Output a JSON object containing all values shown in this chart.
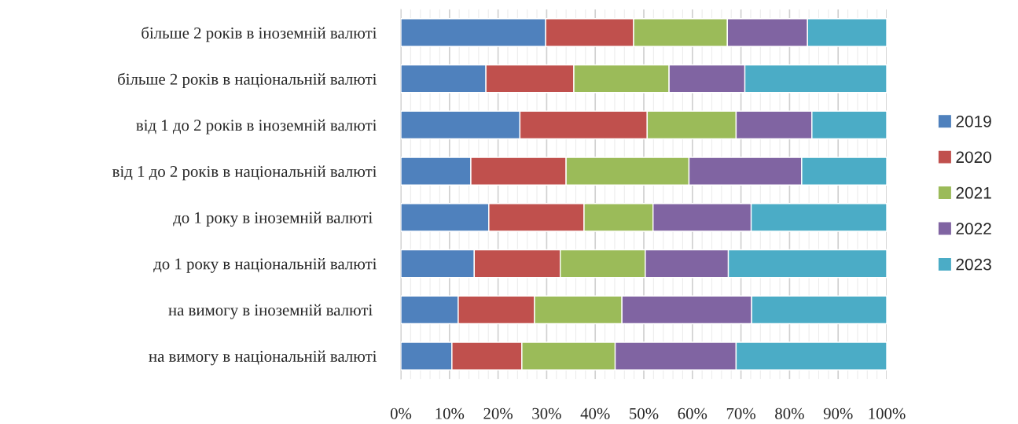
{
  "chart_data": {
    "type": "bar",
    "orientation": "horizontal",
    "stacked": true,
    "categories": [
      "більше 2 років в іноземній валюті",
      "більше 2 років в національній валюті",
      "від 1 до 2 років в іноземній валюті",
      "від 1 до 2 років в національній валюті",
      "до 1 року в іноземній валюті ",
      "до 1 року в національній валюті",
      "на вимогу в іноземній валюті ",
      "на вимогу в національній валюті"
    ],
    "series": [
      {
        "name": "2019",
        "color": "#4f81bd",
        "values": [
          29.8,
          17.5,
          24.5,
          14.4,
          18.1,
          15.1,
          11.8,
          10.5
        ]
      },
      {
        "name": "2020",
        "color": "#c0504d",
        "values": [
          18.1,
          18.1,
          26.2,
          19.6,
          19.6,
          17.7,
          15.7,
          14.4
        ]
      },
      {
        "name": "2021",
        "color": "#9bbb59",
        "values": [
          19.3,
          19.6,
          18.3,
          25.3,
          14.2,
          17.5,
          18.0,
          19.2
        ]
      },
      {
        "name": "2022",
        "color": "#8064a2",
        "values": [
          16.5,
          15.6,
          15.6,
          23.2,
          20.2,
          17.1,
          26.7,
          24.9
        ]
      },
      {
        "name": "2023",
        "color": "#4bacc6",
        "values": [
          16.3,
          29.2,
          15.4,
          17.5,
          27.9,
          32.6,
          27.8,
          31.0
        ]
      }
    ],
    "xlim": [
      0,
      100
    ],
    "xticks": [
      {
        "value": 0,
        "label": "0%"
      },
      {
        "value": 2,
        "label": null
      },
      {
        "value": 4,
        "label": null
      },
      {
        "value": 6,
        "label": null
      },
      {
        "value": 8,
        "label": null
      },
      {
        "value": 10,
        "label": "10%"
      },
      {
        "value": 12,
        "label": null
      },
      {
        "value": 14,
        "label": null
      },
      {
        "value": 16,
        "label": null
      },
      {
        "value": 18,
        "label": null
      },
      {
        "value": 20,
        "label": "20%"
      },
      {
        "value": 22,
        "label": null
      },
      {
        "value": 24,
        "label": null
      },
      {
        "value": 26,
        "label": null
      },
      {
        "value": 28,
        "label": null
      },
      {
        "value": 30,
        "label": "30%"
      },
      {
        "value": 32,
        "label": null
      },
      {
        "value": 34,
        "label": null
      },
      {
        "value": 36,
        "label": null
      },
      {
        "value": 38,
        "label": null
      },
      {
        "value": 40,
        "label": "40%"
      },
      {
        "value": 42,
        "label": null
      },
      {
        "value": 44,
        "label": null
      },
      {
        "value": 46,
        "label": null
      },
      {
        "value": 48,
        "label": null
      },
      {
        "value": 50,
        "label": "50%"
      },
      {
        "value": 52,
        "label": null
      },
      {
        "value": 54,
        "label": null
      },
      {
        "value": 56,
        "label": null
      },
      {
        "value": 58,
        "label": null
      },
      {
        "value": 60,
        "label": "60%"
      },
      {
        "value": 62,
        "label": null
      },
      {
        "value": 64,
        "label": null
      },
      {
        "value": 66,
        "label": null
      },
      {
        "value": 68,
        "label": null
      },
      {
        "value": 70,
        "label": "70%"
      },
      {
        "value": 72,
        "label": null
      },
      {
        "value": 74,
        "label": null
      },
      {
        "value": 76,
        "label": null
      },
      {
        "value": 78,
        "label": null
      },
      {
        "value": 80,
        "label": "80%"
      },
      {
        "value": 82,
        "label": null
      },
      {
        "value": 84,
        "label": null
      },
      {
        "value": 86,
        "label": null
      },
      {
        "value": 88,
        "label": null
      },
      {
        "value": 90,
        "label": "90%"
      },
      {
        "value": 92,
        "label": null
      },
      {
        "value": 94,
        "label": null
      },
      {
        "value": 96,
        "label": null
      },
      {
        "value": 98,
        "label": null
      },
      {
        "value": 100,
        "label": "100%"
      }
    ],
    "grid": "x",
    "legend": "right"
  }
}
